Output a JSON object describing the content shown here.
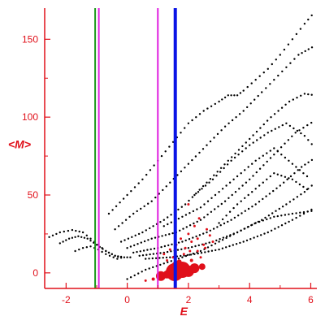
{
  "chart_data": {
    "type": "scatter",
    "xlabel": "E",
    "ylabel": "<M>",
    "xlim": [
      -2.7,
      6.2
    ],
    "ylim": [
      -10,
      170
    ],
    "x_ticks": [
      -2,
      0,
      2,
      4,
      6
    ],
    "y_ticks": [
      0,
      50,
      100,
      150
    ],
    "x_tick_labels": [
      "-2",
      "0",
      "2",
      "4",
      "6"
    ],
    "y_tick_labels": [
      "0",
      "50",
      "100",
      "150"
    ],
    "grid": false,
    "legend": "none",
    "axis_color": "#e0101a",
    "vertical_lines": [
      {
        "x": -1.05,
        "color": "#1a9a1a",
        "width": 2
      },
      {
        "x": -0.93,
        "color": "#e020e0",
        "width": 2
      },
      {
        "x": 1.0,
        "color": "#e020e0",
        "width": 2
      },
      {
        "x": 1.57,
        "color": "#0a14e6",
        "width": 4
      }
    ],
    "series": [
      {
        "color": "#000000",
        "marker_size": 1.2,
        "branches": [
          {
            "x": [
              -2.55,
              -2.2,
              -1.8,
              -1.45,
              -1.2,
              -0.95,
              -0.7,
              -0.4,
              -0.1,
              0.2
            ],
            "y": [
              23,
              26,
              27.5,
              26,
              22,
              18,
              14,
              11,
              10,
              10
            ]
          },
          {
            "x": [
              -2.2,
              -1.9,
              -1.6,
              -1.3,
              -1.0,
              -0.7,
              -0.4,
              -0.1
            ],
            "y": [
              19,
              22,
              23.5,
              22,
              18,
              14,
              11,
              9
            ]
          },
          {
            "x": [
              -1.7,
              -1.45,
              -1.2,
              -0.95,
              -0.7,
              -0.45,
              -0.2
            ],
            "y": [
              14,
              16,
              17,
              15,
              12,
              10,
              8
            ]
          },
          {
            "x": [
              -0.6,
              0.0,
              0.5,
              1.0,
              1.5,
              2.0,
              2.5,
              3.0,
              3.3,
              3.6,
              3.8,
              4.2,
              4.6,
              5.0,
              5.4,
              5.8,
              6.15
            ],
            "y": [
              38,
              50,
              60,
              72,
              84,
              96,
              104,
              110,
              114,
              114,
              117,
              124,
              131,
              140,
              150,
              160,
              168
            ]
          },
          {
            "x": [
              -0.4,
              0.2,
              0.8,
              1.4,
              2.0,
              2.6,
              3.2,
              3.8,
              4.4,
              4.8,
              5.2,
              5.6,
              6.15
            ],
            "y": [
              28,
              38,
              46,
              58,
              70,
              82,
              94,
              104,
              116,
              124,
              132,
              140,
              146
            ]
          },
          {
            "x": [
              -0.2,
              0.5,
              1.2,
              1.9,
              2.6,
              3.3,
              4.0,
              4.7,
              5.3,
              5.8,
              6.15
            ],
            "y": [
              20,
              26,
              34,
              44,
              58,
              72,
              86,
              100,
              110,
              115,
              114
            ]
          },
          {
            "x": [
              0.0,
              0.8,
              1.6,
              2.4,
              3.2,
              4.0,
              4.8,
              5.5,
              6.15
            ],
            "y": [
              16,
              22,
              26,
              34,
              46,
              60,
              76,
              90,
              98
            ]
          },
          {
            "x": [
              0.2,
              1.0,
              1.8,
              2.6,
              3.4,
              4.2,
              5.0,
              5.7,
              6.15
            ],
            "y": [
              13,
              16,
              20,
              26,
              34,
              44,
              56,
              68,
              74
            ]
          },
          {
            "x": [
              0.4,
              1.2,
              2.0,
              2.8,
              3.6,
              4.4,
              5.2,
              5.8,
              6.15
            ],
            "y": [
              11,
              13,
              16,
              20,
              26,
              34,
              44,
              52,
              58
            ]
          },
          {
            "x": [
              0.6,
              1.4,
              2.2,
              3.0,
              3.8,
              4.6,
              5.4,
              6.15
            ],
            "y": [
              9,
              10,
              12,
              15,
              20,
              26,
              34,
              42
            ]
          },
          {
            "x": [
              0.0,
              0.6,
              1.2,
              1.8,
              2.4,
              3.0,
              3.6,
              4.2,
              4.8,
              5.4,
              6.15
            ],
            "y": [
              -4,
              2,
              6,
              10,
              14,
              20,
              26,
              32,
              36,
              38,
              40
            ]
          },
          {
            "x": [
              1.2,
              1.8,
              2.4,
              3.0,
              3.6,
              4.2,
              4.8,
              5.4,
              6.0
            ],
            "y": [
              30,
              36,
              42,
              52,
              62,
              72,
              80,
              70,
              60
            ]
          },
          {
            "x": [
              2.2,
              2.8,
              3.4,
              4.0,
              4.6,
              5.2,
              5.8,
              6.15
            ],
            "y": [
              50,
              60,
              72,
              82,
              90,
              96,
              88,
              80
            ]
          },
          {
            "x": [
              3.0,
              3.6,
              4.2,
              4.8,
              5.4,
              6.0
            ],
            "y": [
              32,
              44,
              54,
              64,
              60,
              52
            ]
          }
        ]
      },
      {
        "color": "#e0101a",
        "points": [
          {
            "x": 1.1,
            "y": -2,
            "size": 6
          },
          {
            "x": 1.3,
            "y": -1,
            "size": 5
          },
          {
            "x": 1.55,
            "y": 0.5,
            "size": 11
          },
          {
            "x": 1.65,
            "y": 3,
            "size": 9
          },
          {
            "x": 1.8,
            "y": 2,
            "size": 10
          },
          {
            "x": 2.0,
            "y": 1,
            "size": 7
          },
          {
            "x": 2.2,
            "y": 3,
            "size": 6
          },
          {
            "x": 2.45,
            "y": 4,
            "size": 4
          },
          {
            "x": 0.85,
            "y": -4,
            "size": 2
          },
          {
            "x": 0.6,
            "y": -5,
            "size": 1.5
          },
          {
            "x": 1.7,
            "y": 7,
            "size": 3
          },
          {
            "x": 2.1,
            "y": 8,
            "size": 2
          },
          {
            "x": 1.2,
            "y": 12,
            "size": 1.5
          },
          {
            "x": 1.4,
            "y": 15,
            "size": 1.5
          },
          {
            "x": 1.6,
            "y": 18,
            "size": 1.5
          },
          {
            "x": 1.75,
            "y": 22,
            "size": 1.5
          },
          {
            "x": 1.9,
            "y": 16,
            "size": 1.5
          },
          {
            "x": 2.0,
            "y": 25,
            "size": 1.5
          },
          {
            "x": 2.1,
            "y": 20,
            "size": 1.5
          },
          {
            "x": 2.2,
            "y": 30,
            "size": 1.5
          },
          {
            "x": 2.3,
            "y": 22,
            "size": 1.5
          },
          {
            "x": 2.35,
            "y": 35,
            "size": 1.5
          },
          {
            "x": 2.5,
            "y": 18,
            "size": 1.5
          },
          {
            "x": 2.6,
            "y": 28,
            "size": 1.5
          },
          {
            "x": 2.7,
            "y": 24,
            "size": 1.5
          },
          {
            "x": 2.8,
            "y": 20,
            "size": 1.5
          },
          {
            "x": 2.0,
            "y": 44,
            "size": 1.5
          },
          {
            "x": 2.3,
            "y": 14,
            "size": 1.5
          },
          {
            "x": 1.3,
            "y": 8,
            "size": 1.5
          },
          {
            "x": 1.5,
            "y": 10,
            "size": 1.5
          },
          {
            "x": 1.85,
            "y": 12,
            "size": 1.5
          },
          {
            "x": 2.05,
            "y": 14,
            "size": 1.5
          },
          {
            "x": 2.4,
            "y": 10,
            "size": 1.5
          },
          {
            "x": 2.55,
            "y": 16,
            "size": 1.5
          }
        ]
      }
    ]
  }
}
